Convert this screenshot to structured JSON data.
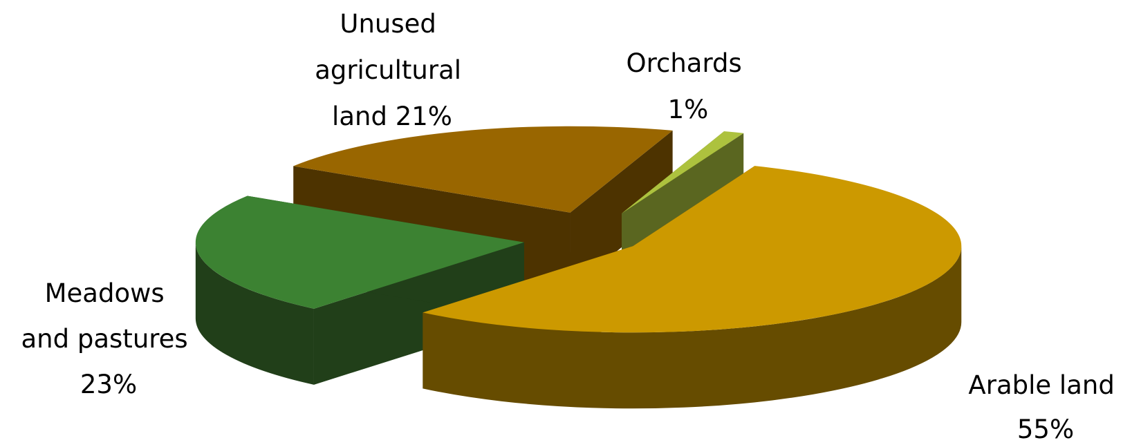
{
  "chart_data": {
    "type": "pie",
    "style": "3d-exploded",
    "title": "",
    "legend": "none",
    "slices": [
      {
        "name": "Arable land",
        "value": 55,
        "label_lines": [
          "Arable land",
          "55%"
        ],
        "color": "#CC9900",
        "side_color": "#664C00"
      },
      {
        "name": "Meadows and pastures",
        "value": 23,
        "label_lines": [
          "Meadows",
          "and pastures",
          "23%"
        ],
        "color": "#3C8232",
        "side_color": "#213F19"
      },
      {
        "name": "Unused agricultural land",
        "value": 21,
        "label_lines": [
          "Unused",
          "agricultural",
          "land 21%"
        ],
        "color": "#996600",
        "side_color": "#4D3300"
      },
      {
        "name": "Orchards",
        "value": 1,
        "label_lines": [
          "Orchards",
          "1%"
        ],
        "color": "#ADC23E",
        "side_color": "#5A6620"
      }
    ]
  }
}
